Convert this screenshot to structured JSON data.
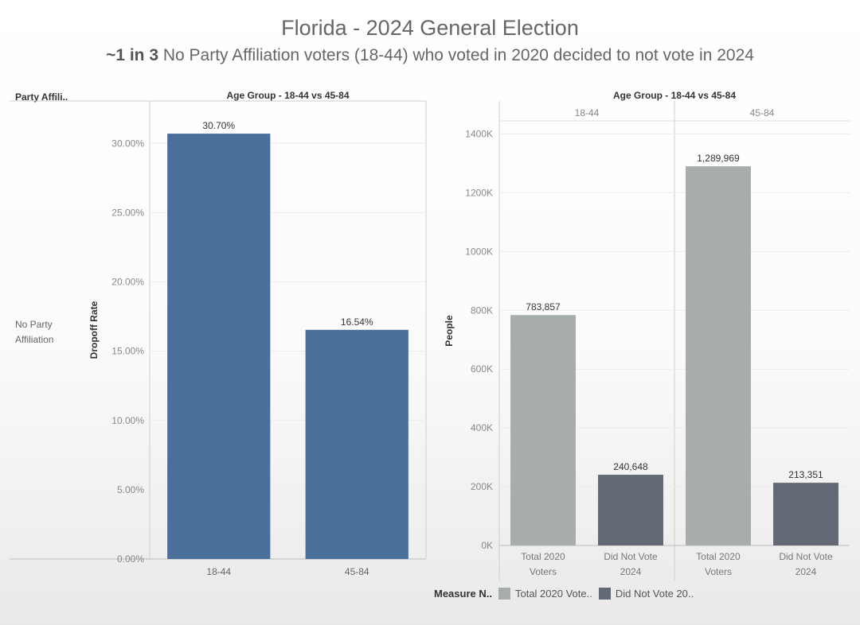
{
  "header": {
    "title": "Florida - 2024 General Election",
    "subtitle_bold": "~1 in 3",
    "subtitle_rest": "No Party Affiliation voters (18-44) who voted in 2020 decided to not vote in 2024"
  },
  "left_panel": {
    "row_header": "Party Affili..",
    "row_label_line1": "No Party",
    "row_label_line2": "Affiliation"
  },
  "chart_data": [
    {
      "type": "bar",
      "title": "Age Group - 18-44 vs 45-84",
      "xlabel": "",
      "ylabel": "Dropoff Rate",
      "categories": [
        "18-44",
        "45-84"
      ],
      "values": [
        30.7,
        16.54
      ],
      "value_labels": [
        "30.70%",
        "16.54%"
      ],
      "ylim": [
        0,
        33
      ],
      "yticks": [
        0,
        5,
        10,
        15,
        20,
        25,
        30
      ],
      "ytick_labels": [
        "0.00%",
        "5.00%",
        "10.00%",
        "15.00%",
        "20.00%",
        "25.00%",
        "30.00%"
      ],
      "color": "#4a6f9b",
      "grid": true
    },
    {
      "type": "bar",
      "title": "Age Group - 18-44 vs 45-84",
      "xlabel": "",
      "ylabel": "People",
      "panels": [
        "18-44",
        "45-84"
      ],
      "categories": [
        [
          "Total 2020",
          "Voters"
        ],
        [
          "Did Not Vote",
          "2024"
        ]
      ],
      "series": [
        {
          "name": "Total 2020 Vote..",
          "values": [
            783857,
            1289969
          ],
          "value_labels": [
            "783,857",
            "1,289,969"
          ],
          "color": "#a7acac"
        },
        {
          "name": "Did Not Vote 20..",
          "values": [
            240648,
            213351
          ],
          "value_labels": [
            "240,648",
            "213,351"
          ],
          "color": "#636975"
        }
      ],
      "ylim": [
        0,
        1450000
      ],
      "yticks": [
        0,
        200000,
        400000,
        600000,
        800000,
        1000000,
        1200000,
        1400000
      ],
      "ytick_labels": [
        "0K",
        "200K",
        "400K",
        "600K",
        "800K",
        "1000K",
        "1200K",
        "1400K"
      ],
      "legend_title": "Measure N..",
      "legend": "bottom",
      "grid": true
    }
  ]
}
